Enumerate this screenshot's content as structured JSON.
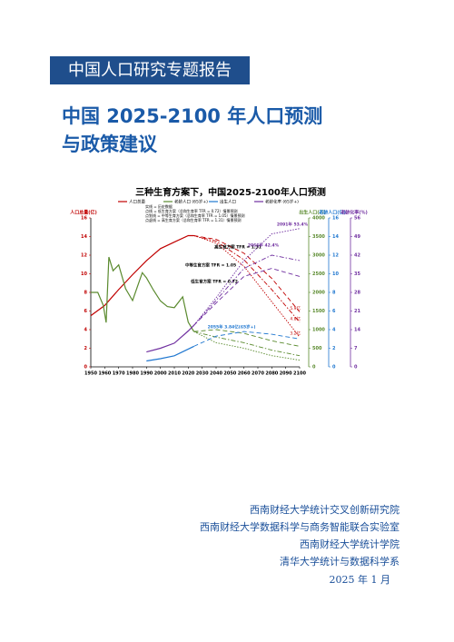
{
  "header": {
    "series_title": "中国人口研究专题报告",
    "title_lines": [
      "中国 2025-2100 年人口预测",
      "与政策建议"
    ]
  },
  "figure": {
    "chart_data": {
      "type": "line",
      "title": "三种生育方案下，中国2025-2100年人口预测",
      "legend": [
        "人口总量",
        "老龄人口 (65岁+)",
        "出生人口",
        "老龄化率 (65岁+)"
      ],
      "legend_notes": [
        "实线 = 历史数据",
        "点线 = 低生育方案（总和生育率 TFR = 0.72）情景预测",
        "点划线 = 中等生育方案（总和生育率 TFR = 1.05）情景预测",
        "点虚线 = 高生育方案（总和生育率 TFR = 1.31）情景预测"
      ],
      "axis_labels": {
        "y": "人口总量(亿)",
        "y2": "出生人口(万)",
        "y3": "老龄人口(亿)",
        "y4": "老龄化率(%)"
      },
      "xlim": [
        1950,
        2100
      ],
      "xticks": [
        1950,
        1960,
        1970,
        1980,
        1990,
        2000,
        2010,
        2020,
        2030,
        2040,
        2050,
        2060,
        2070,
        2080,
        2090,
        2100
      ],
      "ylim": [
        0,
        16
      ],
      "yticks": [
        0,
        2,
        4,
        6,
        8,
        10,
        12,
        14,
        16
      ],
      "y2lim": [
        0,
        4000
      ],
      "y2ticks": [
        0,
        500,
        1000,
        1500,
        2000,
        2500,
        3000,
        3500,
        4000
      ],
      "y3lim": [
        0,
        16
      ],
      "y3ticks": [
        0,
        2,
        4,
        6,
        8,
        10,
        12,
        14,
        16
      ],
      "y4lim": [
        0,
        56
      ],
      "y4ticks": [
        0,
        7,
        14,
        21,
        28,
        35,
        42,
        49,
        56
      ],
      "scenario_dashes": [
        "1.5 1.5",
        "5 2 1.5 2",
        "5 3"
      ],
      "projection_x": [
        2024,
        2040,
        2060,
        2080,
        2100
      ],
      "series": [
        {
          "name": "人口总量",
          "color": "#c00000",
          "axis": "y",
          "x": [
            1950,
            1960,
            1970,
            1980,
            1990,
            2000,
            2010,
            2020,
            2024
          ],
          "values": [
            5.5,
            6.6,
            8.3,
            9.9,
            11.4,
            12.7,
            13.4,
            14.1,
            14.1
          ],
          "projections": [
            [
              14.1,
              13.3,
              10.8,
              7.0,
              3.2
            ],
            [
              14.1,
              13.5,
              11.5,
              8.3,
              4.8
            ],
            [
              14.1,
              13.7,
              12.2,
              9.5,
              5.9
            ]
          ],
          "end_labels": [
            "3.2亿",
            "4.8亿",
            "5.9亿"
          ]
        },
        {
          "name": "出生人口",
          "color": "#5a8a2e",
          "axis": "y2",
          "x": [
            1950,
            1955,
            1959,
            1961,
            1963,
            1966,
            1970,
            1975,
            1980,
            1987,
            1990,
            1995,
            2000,
            2005,
            2010,
            2016,
            2020,
            2024
          ],
          "values": [
            2000,
            2000,
            1650,
            1190,
            2950,
            2580,
            2740,
            2100,
            1780,
            2530,
            2390,
            2060,
            1770,
            1620,
            1590,
            1880,
            1200,
            950
          ],
          "projections": [
            [
              950,
              650,
              500,
              300,
              180
            ],
            [
              950,
              800,
              650,
              450,
              300
            ],
            [
              950,
              1000,
              900,
              700,
              550
            ]
          ]
        },
        {
          "name": "老龄人口 (65岁+)",
          "color": "#1f77d0",
          "axis": "y3",
          "x": [
            1990,
            2000,
            2010,
            2020,
            2024
          ],
          "values": [
            0.63,
            0.88,
            1.19,
            1.91,
            2.2
          ],
          "projections": [
            [
              2.2,
              3.3,
              3.8,
              3.5,
              3.0
            ]
          ]
        },
        {
          "name": "老龄化率 (65岁+)",
          "color": "#7030a0",
          "axis": "y4",
          "x": [
            1990,
            2000,
            2010,
            2020,
            2024
          ],
          "values": [
            5.6,
            7.0,
            8.9,
            13.5,
            15.6
          ],
          "projections": [
            [
              15.6,
              26,
              40,
              50,
              52
            ],
            [
              15.6,
              25,
              37,
              42,
              40
            ],
            [
              15.6,
              24,
              34,
              37,
              34
            ]
          ]
        }
      ],
      "annotations": [
        "高生育方案 TFR = 1.31",
        "中等生育方案 TFR = 1.05",
        "低生育方案 TFR = 0.72",
        "2055年 3.84亿(65岁+)",
        "2091年 53.4%",
        "2066年 42.4%"
      ]
    }
  },
  "footer": {
    "affiliations": [
      "西南财经大学统计交叉创新研究院",
      "西南财经大学数据科学与商务智能联合实验室",
      "西南财经大学统计学院",
      "清华大学统计与数据科学系"
    ],
    "date": "2025 年 1 月"
  }
}
